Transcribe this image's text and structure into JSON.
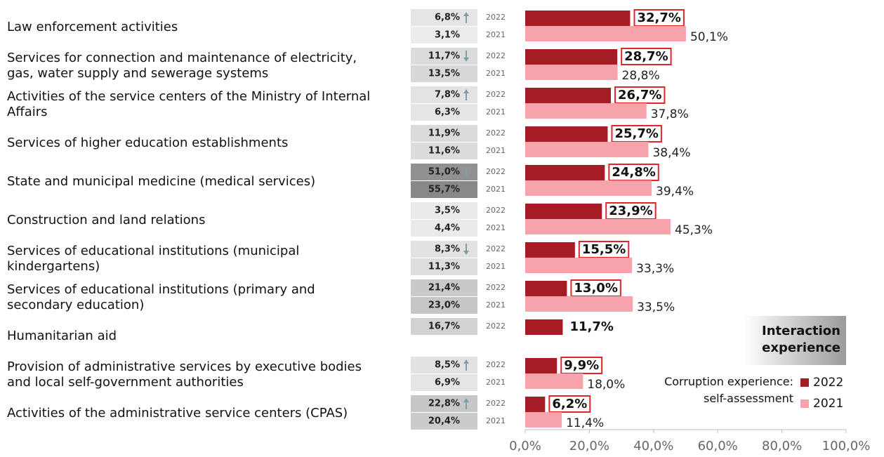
{
  "chart_data": {
    "type": "bar",
    "orientation": "horizontal",
    "categories": [
      "Law enforcement activities",
      "Services for connection and maintenance of electricity,\ngas, water supply and sewerage systems",
      "Activities of the service centers of the Ministry of Internal\nAffairs",
      "Services of higher education establishments",
      "State and municipal medicine (medical services)",
      "Construction and land relations",
      "Services of educational institutions (municipal\nkindergartens)",
      "Services of educational institutions (primary and\nsecondary education)",
      "Humanitarian aid",
      "Provision of administrative services by executive bodies\nand local self-government authorities",
      "Activities of the administrative service centers (CPAS)"
    ],
    "series": [
      {
        "name": "2022",
        "color": "#a51c24",
        "values": [
          32.7,
          28.7,
          26.7,
          25.7,
          24.8,
          23.9,
          15.5,
          13.0,
          11.7,
          9.9,
          6.2
        ],
        "value_labels": [
          "32,7%",
          "28,7%",
          "26,7%",
          "25,7%",
          "24,8%",
          "23,9%",
          "15,5%",
          "13,0%",
          "11,7%",
          "9,9%",
          "6,2%"
        ]
      },
      {
        "name": "2021",
        "color": "#f7a3ab",
        "values": [
          50.1,
          28.8,
          37.8,
          38.4,
          39.4,
          45.3,
          33.3,
          33.5,
          null,
          18.0,
          11.4
        ],
        "value_labels": [
          "50,1%",
          "28,8%",
          "37,8%",
          "38,4%",
          "39,4%",
          "45,3%",
          "33,3%",
          "33,5%",
          null,
          "18,0%",
          "11,4%"
        ]
      }
    ],
    "legend_title": "Corruption experience:\nself-assessment",
    "interaction": {
      "name": "Interaction experience",
      "series": [
        {
          "name": "2022",
          "values": [
            6.8,
            11.7,
            7.8,
            11.9,
            51.0,
            3.5,
            8.3,
            21.4,
            16.7,
            8.5,
            22.8
          ],
          "value_labels": [
            "6,8%",
            "11,7%",
            "7,8%",
            "11,9%",
            "51,0%",
            "3,5%",
            "8,3%",
            "21,4%",
            "16,7%",
            "8,5%",
            "22,8%"
          ]
        },
        {
          "name": "2021",
          "values": [
            3.1,
            13.5,
            6.3,
            11.6,
            55.7,
            4.4,
            11.3,
            23.0,
            null,
            6.9,
            20.4
          ],
          "value_labels": [
            "3,1%",
            "13,5%",
            "6,3%",
            "11,6%",
            "55,7%",
            "4,4%",
            "11,3%",
            "23,0%",
            null,
            "6,9%",
            "20,4%"
          ]
        }
      ],
      "trend": [
        "up",
        "down",
        "up",
        null,
        "down",
        null,
        "down",
        null,
        null,
        "up",
        "up"
      ]
    },
    "xlim": [
      0,
      100
    ],
    "xticks": [
      {
        "value": 0,
        "label": "0,0%"
      },
      {
        "value": 20,
        "label": "20,0%"
      },
      {
        "value": 40,
        "label": "40,0%"
      },
      {
        "value": 60,
        "label": "60,0%"
      },
      {
        "value": 80,
        "label": "80,0%"
      },
      {
        "value": 100,
        "label": "100,0%"
      }
    ]
  }
}
